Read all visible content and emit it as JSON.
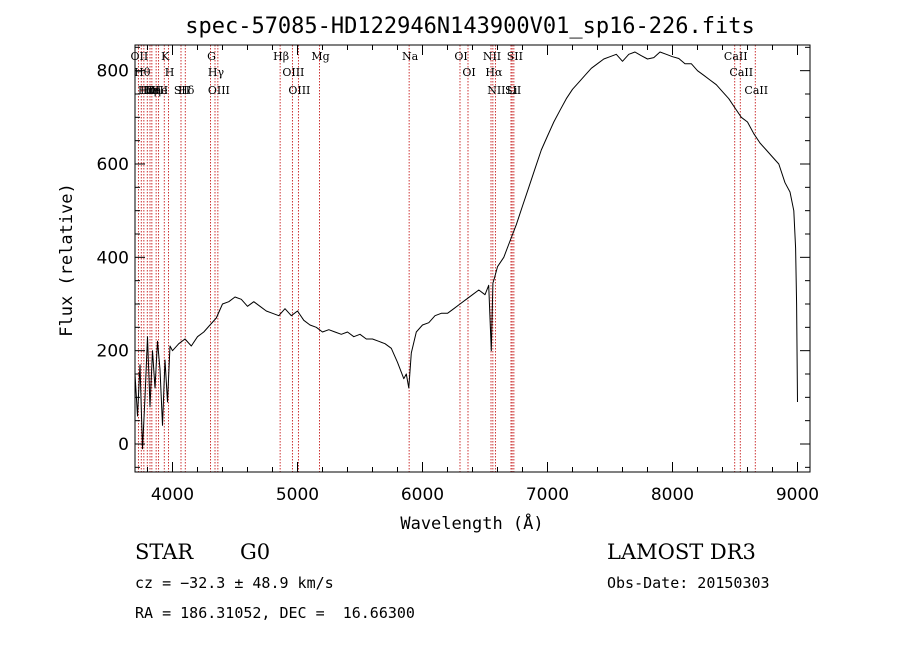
{
  "chart_data": {
    "type": "line",
    "title": "spec-57085-HD122946N143900V01_sp16-226.fits",
    "xlabel": "Wavelength (Å)",
    "ylabel": "Flux (relative)",
    "xlim": [
      3700,
      9100
    ],
    "ylim": [
      -60,
      855
    ],
    "xticks": [
      4000,
      5000,
      6000,
      7000,
      8000,
      9000
    ],
    "yticks": [
      0,
      200,
      400,
      600,
      800
    ],
    "series": [
      {
        "name": "spectrum",
        "x": [
          3700,
          3720,
          3740,
          3760,
          3780,
          3800,
          3820,
          3840,
          3860,
          3880,
          3900,
          3920,
          3940,
          3960,
          3980,
          4000,
          4050,
          4100,
          4150,
          4200,
          4250,
          4300,
          4350,
          4400,
          4450,
          4500,
          4550,
          4600,
          4650,
          4700,
          4750,
          4800,
          4850,
          4900,
          4950,
          5000,
          5050,
          5100,
          5150,
          5200,
          5250,
          5300,
          5350,
          5400,
          5450,
          5500,
          5550,
          5600,
          5650,
          5700,
          5750,
          5800,
          5850,
          5870,
          5890,
          5910,
          5950,
          6000,
          6050,
          6100,
          6150,
          6200,
          6250,
          6300,
          6350,
          6400,
          6450,
          6500,
          6530,
          6550,
          6563,
          6575,
          6600,
          6650,
          6700,
          6750,
          6800,
          6850,
          6900,
          6950,
          7000,
          7050,
          7100,
          7150,
          7200,
          7250,
          7300,
          7350,
          7400,
          7450,
          7500,
          7550,
          7600,
          7650,
          7700,
          7750,
          7800,
          7850,
          7900,
          7950,
          8000,
          8050,
          8100,
          8150,
          8200,
          8250,
          8300,
          8350,
          8400,
          8450,
          8500,
          8550,
          8600,
          8650,
          8700,
          8750,
          8800,
          8850,
          8900,
          8940,
          8970,
          8985,
          8993,
          9000
        ],
        "y": [
          150,
          60,
          170,
          -10,
          100,
          230,
          80,
          200,
          120,
          220,
          160,
          40,
          180,
          90,
          210,
          200,
          215,
          225,
          210,
          230,
          240,
          255,
          270,
          300,
          305,
          315,
          310,
          295,
          305,
          295,
          285,
          280,
          275,
          290,
          275,
          285,
          265,
          255,
          250,
          240,
          245,
          240,
          235,
          240,
          230,
          235,
          225,
          225,
          220,
          215,
          205,
          175,
          140,
          150,
          120,
          195,
          240,
          255,
          260,
          275,
          280,
          280,
          290,
          300,
          310,
          320,
          330,
          320,
          340,
          200,
          345,
          355,
          380,
          400,
          435,
          470,
          510,
          550,
          590,
          630,
          660,
          690,
          715,
          740,
          760,
          775,
          790,
          805,
          815,
          825,
          830,
          835,
          820,
          835,
          840,
          832,
          825,
          828,
          840,
          835,
          830,
          826,
          815,
          815,
          800,
          790,
          780,
          770,
          755,
          740,
          720,
          700,
          690,
          665,
          645,
          630,
          615,
          600,
          560,
          540,
          500,
          420,
          300,
          90
        ],
        "color": "#000000"
      }
    ],
    "line_markers": [
      {
        "wl": 3727,
        "label": "OII"
      },
      {
        "wl": 3750,
        "label": "Hθ"
      },
      {
        "wl": 3771,
        "label": "Hι"
      },
      {
        "wl": 3798,
        "label": "Hη"
      },
      {
        "wl": 3820,
        "label": "He"
      },
      {
        "wl": 3835,
        "label": "Hη"
      },
      {
        "wl": 3869,
        "label": "OIII"
      },
      {
        "wl": 3889,
        "label": "He"
      },
      {
        "wl": 3934,
        "label": "K"
      },
      {
        "wl": 3968,
        "label": "H"
      },
      {
        "wl": 4068,
        "label": "SII"
      },
      {
        "wl": 4102,
        "label": "Hδ"
      },
      {
        "wl": 4304,
        "label": "G"
      },
      {
        "wl": 4340,
        "label": "Hγ"
      },
      {
        "wl": 4363,
        "label": "OIII"
      },
      {
        "wl": 4861,
        "label": "Hβ"
      },
      {
        "wl": 4959,
        "label": "OIII"
      },
      {
        "wl": 5007,
        "label": "OIII"
      },
      {
        "wl": 5176,
        "label": "Mg"
      },
      {
        "wl": 5893,
        "label": "Na"
      },
      {
        "wl": 6300,
        "label": "OI"
      },
      {
        "wl": 6364,
        "label": "OI"
      },
      {
        "wl": 6548,
        "label": "NII"
      },
      {
        "wl": 6563,
        "label": "Hα"
      },
      {
        "wl": 6583,
        "label": "NII"
      },
      {
        "wl": 6708,
        "label": "Li"
      },
      {
        "wl": 6717,
        "label": "SII"
      },
      {
        "wl": 6731,
        "label": "SII"
      },
      {
        "wl": 8498,
        "label": "CaII"
      },
      {
        "wl": 8542,
        "label": "CaII"
      },
      {
        "wl": 8662,
        "label": "CaII"
      }
    ]
  },
  "info": {
    "object_class": "STAR",
    "subclass": "G0",
    "survey": "LAMOST DR3",
    "redshift_text": "cz = −32.3 ± 48.9 km/s",
    "obs_date_text": "Obs-Date: 20150303",
    "coords_text": "RA = 186.31052, DEC =  16.66300"
  },
  "colors": {
    "marker_line": "#c00000",
    "spectrum": "#000000",
    "axis": "#000000"
  }
}
